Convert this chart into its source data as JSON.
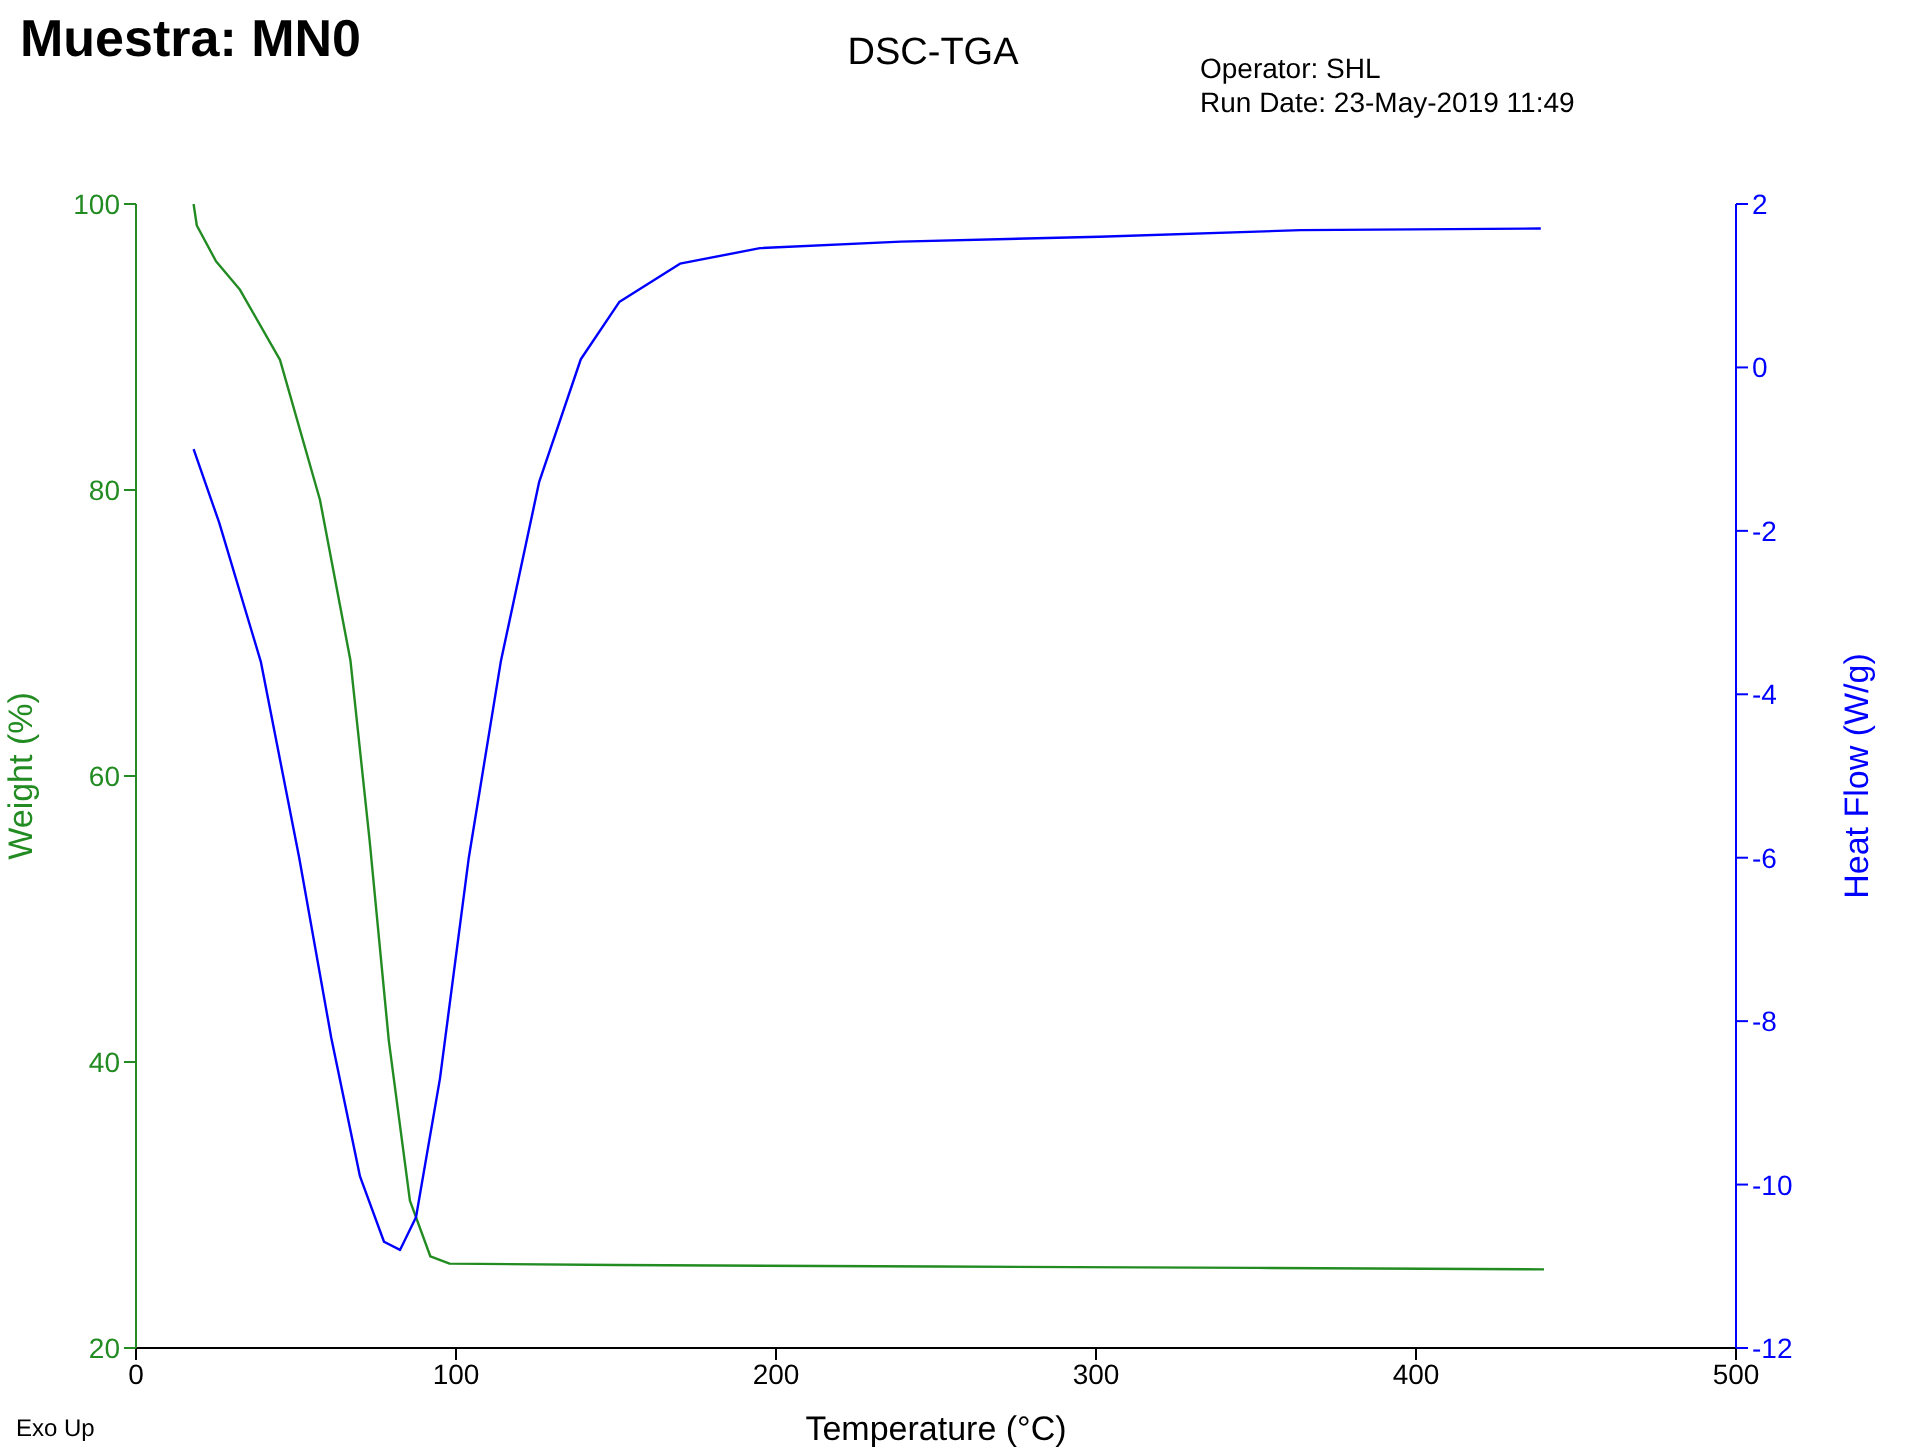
{
  "chart_data": {
    "type": "line",
    "title": "Muestra: MN0",
    "subtitle": "DSC-TGA",
    "xlabel": "Temperature (°C)",
    "ylabel": "Weight (%)",
    "y2label": "Heat Flow (W/g)",
    "annotations": [
      "Operator: SHL",
      "Run Date: 23-May-2019 11:49",
      "Exo Up"
    ],
    "xlim": [
      0,
      500
    ],
    "xticks": [
      0,
      100,
      200,
      300,
      400,
      500
    ],
    "ylim": [
      20,
      100
    ],
    "yticks": [
      20,
      40,
      60,
      80,
      100
    ],
    "y2lim": [
      -12,
      2
    ],
    "y2ticks": [
      -12,
      -10,
      -8,
      -6,
      -4,
      -2,
      0,
      2
    ],
    "marker": "none",
    "line_style": "solid",
    "series": [
      {
        "color": "#228b22",
        "x": [
          18,
          19,
          25,
          32.5,
          45,
          57.5,
          67,
          73,
          79,
          85.6,
          92,
          98,
          150,
          250,
          350,
          440
        ],
        "values": [
          100,
          98.5,
          96,
          94,
          89.1,
          79.3,
          68.1,
          55.5,
          41.5,
          30.3,
          26.4,
          25.9,
          25.8,
          25.7,
          25.6,
          25.5
        ]
      },
      {
        "color": "#0000ff",
        "axis": "y2",
        "x": [
          18,
          26,
          39,
          51,
          61,
          70,
          77.5,
          82.5,
          87.5,
          95,
          104,
          114,
          126,
          139,
          151,
          170,
          195,
          239,
          301,
          364,
          439
        ],
        "values": [
          -1.0,
          -1.9,
          -3.6,
          -6.0,
          -8.2,
          -9.9,
          -10.7,
          -10.8,
          -10.4,
          -8.7,
          -6.0,
          -3.6,
          -1.4,
          0.1,
          0.8,
          1.27,
          1.46,
          1.54,
          1.6,
          1.68,
          1.7
        ]
      }
    ]
  }
}
